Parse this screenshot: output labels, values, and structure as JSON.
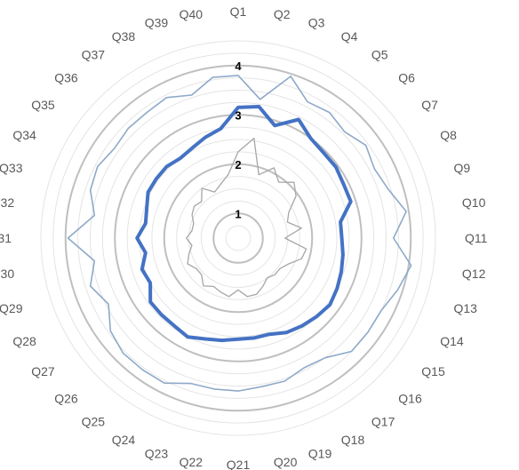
{
  "chart_data": {
    "type": "radar",
    "categories": [
      "Q1",
      "Q2",
      "Q3",
      "Q4",
      "Q5",
      "Q6",
      "Q7",
      "Q8",
      "Q9",
      "Q10",
      "Q11",
      "Q12",
      "Q13",
      "Q14",
      "Q15",
      "Q16",
      "Q17",
      "Q18",
      "Q19",
      "Q20",
      "Q21",
      "Q22",
      "Q23",
      "Q24",
      "Q25",
      "Q26",
      "Q27",
      "Q28",
      "Q29",
      "Q30",
      "Q31",
      "Q32",
      "Q33",
      "Q34",
      "Q35",
      "Q36",
      "Q37",
      "Q38",
      "Q39",
      "Q40"
    ],
    "rlim": [
      0.5,
      4.5
    ],
    "ticks": [
      {
        "value": 1,
        "label": "1"
      },
      {
        "value": 2,
        "label": "2"
      },
      {
        "value": 3,
        "label": "3"
      },
      {
        "value": 4,
        "label": "4"
      }
    ],
    "minor_step": 0.25,
    "grid": true,
    "series": [
      {
        "color": "#4472C4",
        "width": 4,
        "values": [
          3.15,
          3.2,
          2.9,
          3.2,
          3.0,
          2.95,
          2.95,
          2.9,
          2.9,
          2.6,
          2.6,
          2.65,
          2.7,
          2.75,
          2.8,
          2.75,
          2.7,
          2.65,
          2.55,
          2.55,
          2.55,
          2.6,
          2.65,
          2.75,
          2.7,
          2.7,
          2.7,
          2.5,
          2.55,
          2.4,
          2.55,
          2.4,
          2.45,
          2.55,
          2.55,
          2.55,
          2.5,
          2.55,
          2.65,
          2.75
        ]
      },
      {
        "color": "#8EA9C9",
        "width": 1.6,
        "values": [
          3.8,
          3.35,
          3.95,
          3.6,
          3.65,
          3.55,
          3.7,
          3.6,
          3.7,
          3.95,
          3.65,
          4.05,
          3.9,
          3.75,
          3.75,
          3.75,
          3.5,
          3.45,
          3.55,
          3.55,
          3.6,
          3.6,
          3.6,
          3.8,
          3.8,
          3.8,
          3.7,
          3.45,
          3.65,
          3.45,
          3.95,
          3.45,
          3.65,
          3.7,
          3.6,
          3.65,
          3.65,
          3.7,
          3.55,
          3.8
        ]
      },
      {
        "color": "#A6A6A6",
        "width": 1.3,
        "values": [
          2.25,
          2.55,
          1.85,
          2.1,
          1.9,
          2.1,
          1.95,
          1.65,
          1.55,
          1.8,
          1.45,
          1.9,
          1.85,
          1.65,
          1.55,
          1.55,
          1.5,
          1.6,
          1.7,
          1.7,
          1.55,
          1.7,
          1.65,
          1.6,
          1.7,
          1.55,
          1.55,
          1.65,
          1.55,
          1.45,
          1.55,
          1.45,
          1.45,
          1.55,
          1.6,
          1.55,
          1.75,
          1.55,
          1.65,
          1.8
        ]
      }
    ]
  }
}
